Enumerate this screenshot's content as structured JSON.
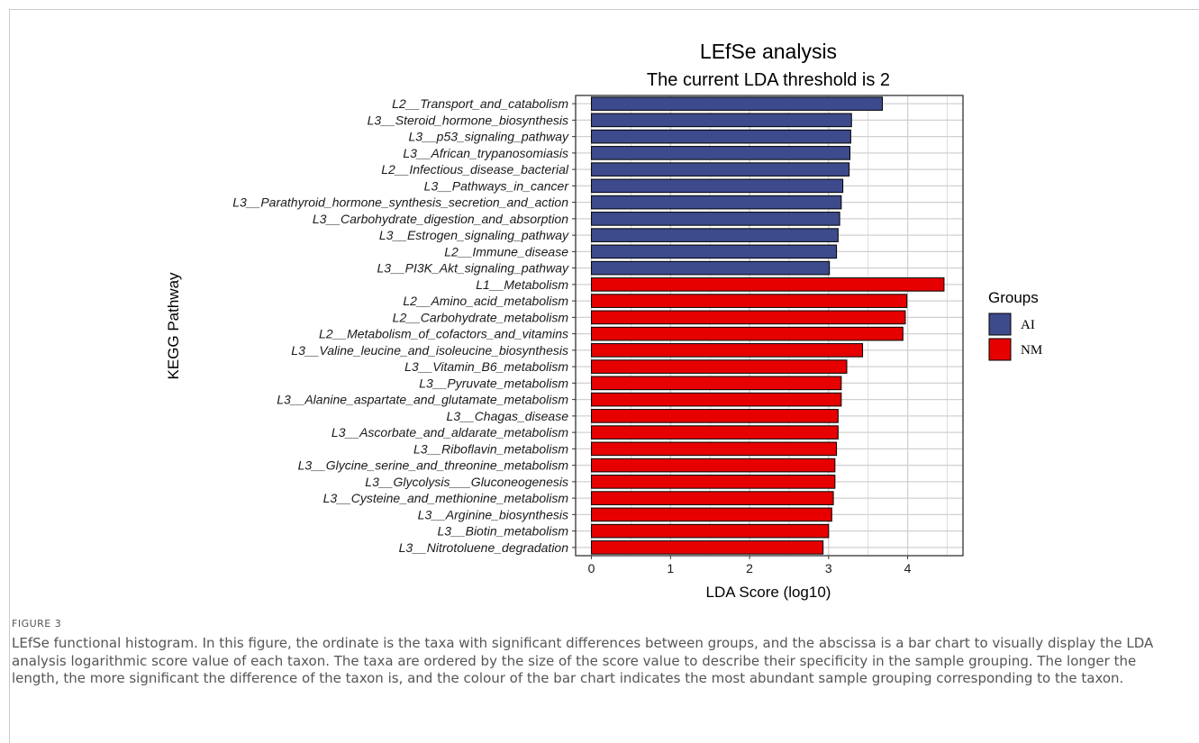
{
  "chart_data": {
    "type": "bar",
    "orientation": "horizontal",
    "title": "LEfSe analysis",
    "subtitle": "The current LDA threshold is 2",
    "xlabel": "LDA Score (log10)",
    "ylabel": "KEGG Pathway",
    "xlim": [
      -0.2,
      4.7
    ],
    "xticks": [
      0,
      1,
      2,
      3,
      4
    ],
    "grid": true,
    "legend": {
      "title": "Groups",
      "placement": "right"
    },
    "groups": [
      {
        "name": "AI",
        "color": "#3D4A8C"
      },
      {
        "name": "NM",
        "color": "#E60000"
      }
    ],
    "categories": [
      "L2__Transport_and_catabolism",
      "L3__Steroid_hormone_biosynthesis",
      "L3__p53_signaling_pathway",
      "L3__African_trypanosomiasis",
      "L2__Infectious_disease_bacterial",
      "L3__Pathways_in_cancer",
      "L3__Parathyroid_hormone_synthesis_secretion_and_action",
      "L3__Carbohydrate_digestion_and_absorption",
      "L3__Estrogen_signaling_pathway",
      "L2__Immune_disease",
      "L3__PI3K_Akt_signaling_pathway",
      "L1__Metabolism",
      "L2__Amino_acid_metabolism",
      "L2__Carbohydrate_metabolism",
      "L2__Metabolism_of_cofactors_and_vitamins",
      "L3__Valine_leucine_and_isoleucine_biosynthesis",
      "L3__Vitamin_B6_metabolism",
      "L3__Pyruvate_metabolism",
      "L3__Alanine_aspartate_and_glutamate_metabolism",
      "L3__Chagas_disease",
      "L3__Ascorbate_and_aldarate_metabolism",
      "L3__Riboflavin_metabolism",
      "L3__Glycine_serine_and_threonine_metabolism",
      "L3__Glycolysis___Gluconeogenesis",
      "L3__Cysteine_and_methionine_metabolism",
      "L3__Arginine_biosynthesis",
      "L3__Biotin_metabolism",
      "L3__Nitrotoluene_degradation"
    ],
    "values": [
      3.68,
      3.29,
      3.28,
      3.27,
      3.26,
      3.18,
      3.16,
      3.14,
      3.12,
      3.1,
      3.01,
      4.46,
      3.99,
      3.97,
      3.94,
      3.43,
      3.23,
      3.16,
      3.16,
      3.12,
      3.12,
      3.1,
      3.08,
      3.08,
      3.06,
      3.04,
      3.0,
      2.93
    ],
    "group_of_bar": [
      "AI",
      "AI",
      "AI",
      "AI",
      "AI",
      "AI",
      "AI",
      "AI",
      "AI",
      "AI",
      "AI",
      "NM",
      "NM",
      "NM",
      "NM",
      "NM",
      "NM",
      "NM",
      "NM",
      "NM",
      "NM",
      "NM",
      "NM",
      "NM",
      "NM",
      "NM",
      "NM",
      "NM"
    ]
  },
  "caption": {
    "label": "FIGURE 3",
    "text": "LEfSe functional histogram. In this figure, the ordinate is the taxa with significant differences between groups, and the abscissa is a bar chart to visually display the LDA analysis logarithmic score value of each taxon. The taxa are ordered by the size of the score value to describe their specificity in the sample grouping. The longer the length, the more significant the difference of the taxon is, and the colour of the bar chart indicates the most abundant sample grouping corresponding to the taxon."
  }
}
